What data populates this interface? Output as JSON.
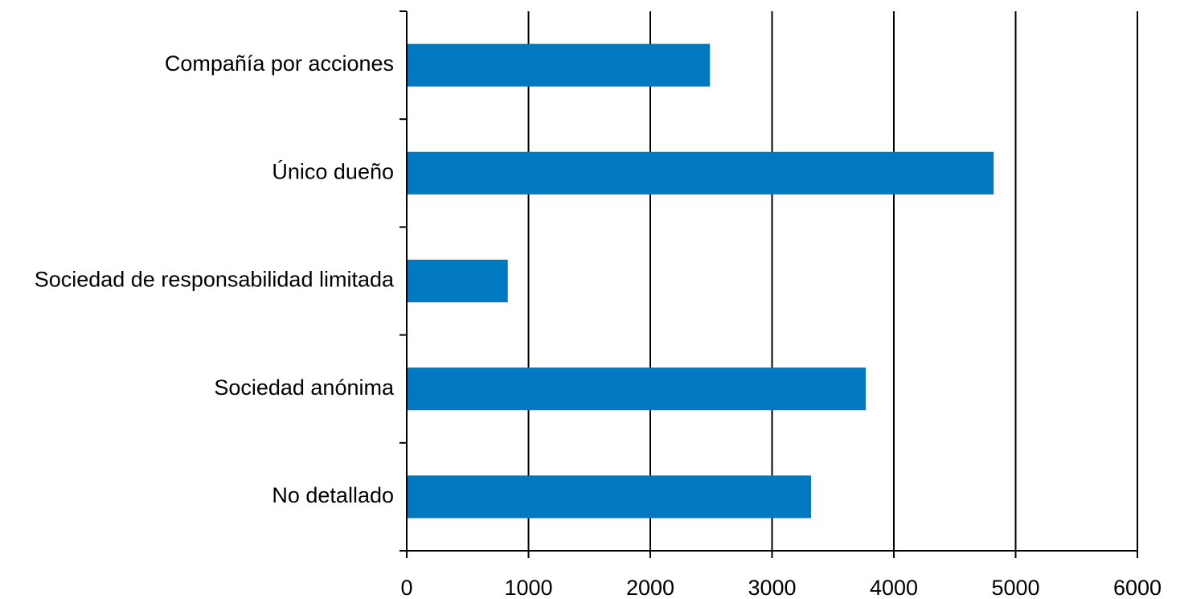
{
  "chart_data": {
    "type": "bar",
    "orientation": "horizontal",
    "categories": [
      "Compañía por acciones",
      "Único dueño",
      "Sociedad de responsabilidad limitada",
      "Sociedad anónima",
      "No detallado"
    ],
    "values": [
      2490,
      4820,
      830,
      3770,
      3320
    ],
    "xlim": [
      0,
      6000
    ],
    "x_ticks": [
      0,
      1000,
      2000,
      3000,
      4000,
      5000,
      6000
    ],
    "x_tick_labels": [
      "0",
      "1000",
      "2000",
      "3000",
      "4000",
      "5000",
      "6000"
    ],
    "title": "",
    "xlabel": "",
    "ylabel": "",
    "grid": "vertical major gridlines",
    "legend": "none",
    "bar_color": "#0079C1",
    "axis_color": "#000000"
  }
}
